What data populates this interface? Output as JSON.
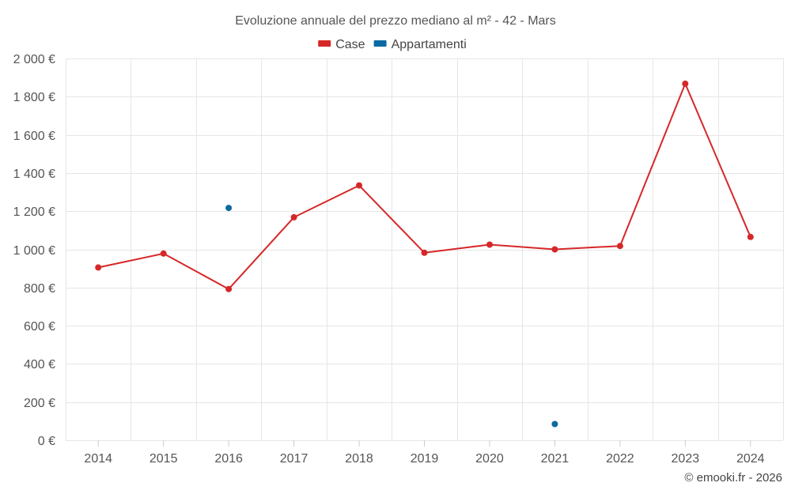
{
  "chart_data": {
    "type": "line",
    "title": "Evoluzione annuale del prezzo mediano al m² - 42 - Mars",
    "categories": [
      "2014",
      "2015",
      "2016",
      "2017",
      "2018",
      "2019",
      "2020",
      "2021",
      "2022",
      "2023",
      "2024"
    ],
    "series": [
      {
        "name": "Case",
        "color": "#d62728",
        "line": true,
        "values": [
          905,
          978,
          792,
          1168,
          1335,
          982,
          1025,
          1000,
          1018,
          1868,
          1065
        ]
      },
      {
        "name": "Appartamenti",
        "color": "#0b6aa2",
        "line": false,
        "values": [
          null,
          null,
          1217,
          null,
          null,
          null,
          null,
          85,
          null,
          null,
          null
        ]
      }
    ],
    "ylim": [
      0,
      2000
    ],
    "yticks": [
      0,
      200,
      400,
      600,
      800,
      1000,
      1200,
      1400,
      1600,
      1800,
      2000
    ],
    "ytick_labels": [
      "0 €",
      "200 €",
      "400 €",
      "600 €",
      "800 €",
      "1 000 €",
      "1 200 €",
      "1 400 €",
      "1 600 €",
      "1 800 €",
      "2 000 €"
    ],
    "xlabel": "",
    "ylabel": "",
    "grid": true,
    "legend_position": "top-center"
  },
  "credit": "© emooki.fr - 2026"
}
